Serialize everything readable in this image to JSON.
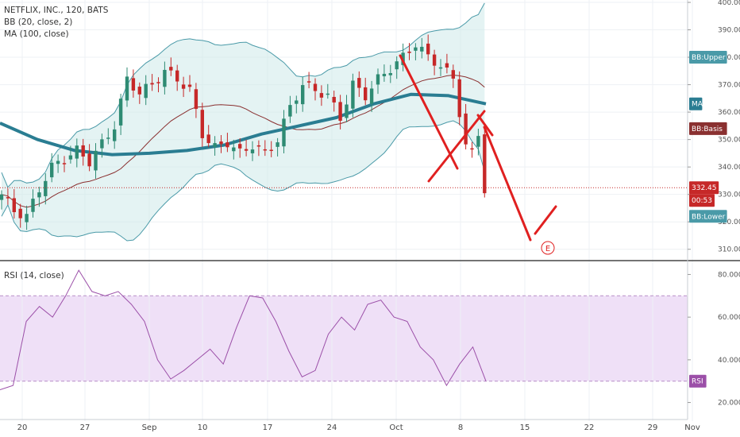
{
  "header": {
    "title": "NETFLIX, INC., 120, BATS",
    "bb_label": "BB (20, close, 2)",
    "ma_label": "MA (100, close)",
    "rsi_label": "RSI (14, close)"
  },
  "colors": {
    "up": "#2e8b73",
    "down": "#c62828",
    "bb": "#4a9aa8",
    "bb_fill": "#cdeaea",
    "basis": "#8a3030",
    "ma": "#2a7d92",
    "rsi_line": "#9b4fa8",
    "rsi_band": "#efe0f7",
    "drawing": "#e02020"
  },
  "chart_data": [
    {
      "type": "candlestick",
      "title": "NETFLIX, INC., 120, BATS",
      "ylim": [
        305,
        400
      ],
      "y_ticks": [
        "310.000",
        "320.000",
        "330.000",
        "340.000",
        "350.000",
        "360.000",
        "370.000",
        "380.000",
        "390.000",
        "400.000"
      ],
      "x_ticks": [
        "20",
        "27",
        "Sep",
        "10",
        "17",
        "24",
        "Oct",
        "8",
        "15",
        "22",
        "29",
        "Nov"
      ],
      "last_price": "332.45",
      "countdown": "00:53",
      "tags": [
        "BB:Upper",
        "MA",
        "BB:Basis",
        "BB:Lower"
      ],
      "series": [
        {
          "name": "BB (20, close, 2)",
          "lines": [
            "BB:Upper",
            "BB:Basis",
            "BB:Lower"
          ]
        },
        {
          "name": "MA (100, close)",
          "values": [
            356,
            350,
            346,
            344.5,
            345,
            346,
            348,
            352,
            355,
            358,
            363,
            366.5,
            366,
            363
          ]
        }
      ],
      "annotations": [
        "E"
      ]
    },
    {
      "type": "line",
      "title": "RSI (14, close)",
      "ylim": [
        15,
        85
      ],
      "y_ticks": [
        "20.0000",
        "40.0000",
        "60.0000",
        "80.0000"
      ],
      "band": [
        30,
        70
      ],
      "series": [
        {
          "name": "RSI",
          "values": [
            26,
            28,
            58,
            65,
            60,
            70,
            82,
            72,
            70,
            72,
            66,
            58,
            40,
            31,
            35,
            40,
            45,
            38,
            55,
            70,
            69,
            58,
            44,
            32,
            35,
            52,
            60,
            54,
            66,
            68,
            60,
            58,
            46,
            40,
            28,
            38,
            46,
            30
          ]
        }
      ]
    }
  ]
}
